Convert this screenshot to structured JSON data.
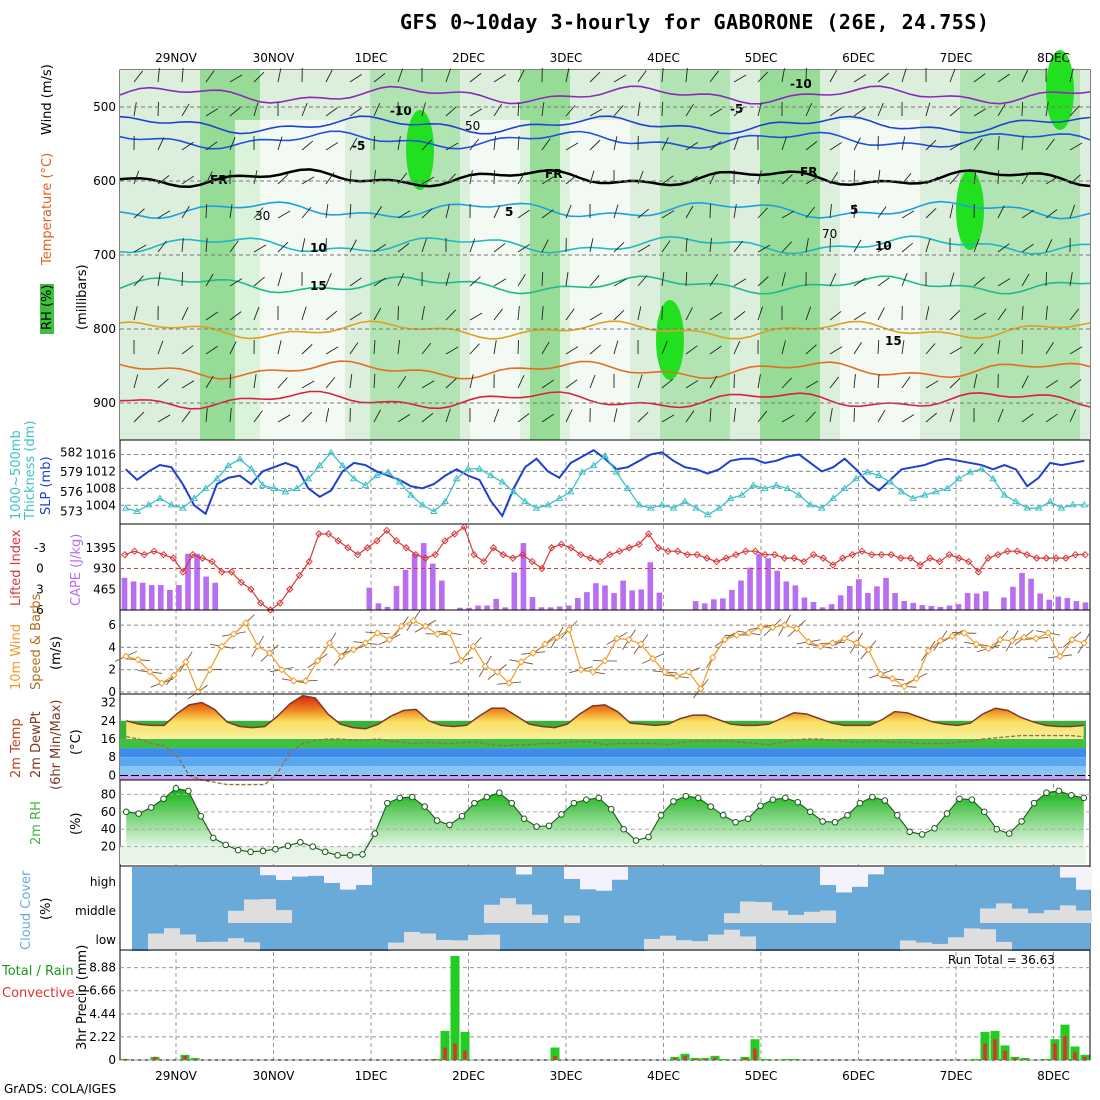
{
  "title": "GFS 0~10day 3-hourly for GABORONE (26E, 24.75S)",
  "credit": "GrADS: COLA/IGES",
  "dates": [
    "29NOV",
    "30NOV",
    "1DEC",
    "2DEC",
    "3DEC",
    "4DEC",
    "5DEC",
    "6DEC",
    "7DEC",
    "8DEC"
  ],
  "colors": {
    "rh_green": "#2dc52d",
    "rh_light": "#dcefdc",
    "slp": "#1f3fd0",
    "thick": "#3ec0c8",
    "li": "#d83838",
    "cape": "#b86ef0",
    "wind": "#f09a2a",
    "temp_max": "#e04020",
    "rh2m": "#3cb83c",
    "cloud": "#6aaad8",
    "precip_total": "#22cc22",
    "precip_conv": "#e03030"
  },
  "chart_data": [
    {
      "type": "heatmap",
      "title": "RH (%), Temperature (°C), Wind (m/s)",
      "ylabel": "(millibars)",
      "y_ticks": [
        "500",
        "600",
        "700",
        "800",
        "900"
      ],
      "labels": {
        "rh": "RH (%)",
        "temp": "Temperature (°C)",
        "wind": "Wind (m/s)",
        "mb": "(millibars)"
      },
      "isotherm_labels": [
        "-10",
        "-10",
        "-5",
        "-5",
        "FR",
        "FR",
        "FR",
        "5",
        "5",
        "10",
        "10",
        "15",
        "15"
      ],
      "rh_contour_labels": [
        "30",
        "50",
        "70"
      ]
    },
    {
      "type": "line",
      "title": "1000-500mb Thickness (dm) / SLP (mb)",
      "labels": {
        "thick": "1000~500mb",
        "thick2": "Thickness (dm)",
        "slp": "SLP (mb)"
      },
      "left_ticks": [
        "582",
        "579",
        "576",
        "573"
      ],
      "right_ticks": [
        "1016",
        "1012",
        "1008",
        "1004"
      ],
      "left_ylim": [
        572,
        583
      ],
      "right_ylim": [
        1001,
        1018
      ],
      "series": [
        {
          "name": "SLP",
          "values": [
            1012.5,
            1010,
            1012,
            1013.5,
            1013,
            1009,
            1004,
            1002,
            1009,
            1010.5,
            1011,
            1009,
            1012,
            1013,
            1014,
            1013,
            1008,
            1006,
            1007.5,
            1012,
            1014,
            1013.5,
            1012,
            1011,
            1010,
            1008.5,
            1008,
            1009,
            1011,
            1012.5,
            1011,
            1010,
            1005,
            1001.5,
            1008,
            1013,
            1015,
            1012,
            1010.5,
            1014,
            1015.5,
            1017,
            1015,
            1012.5,
            1013,
            1014.5,
            1016,
            1016.5,
            1014.5,
            1013,
            1012.5,
            1011.5,
            1012.5,
            1014.5,
            1015,
            1015,
            1014,
            1014.5,
            1015.5,
            1016,
            1014,
            1012,
            1013,
            1015,
            1012.5,
            1009.5,
            1007.5,
            1010,
            1012.5,
            1013,
            1013.5,
            1014.5,
            1015,
            1014.5,
            1014,
            1013.5,
            1012.5,
            1013.5,
            1012.5,
            1008.5,
            1010.5,
            1014,
            1013.5,
            1014,
            1014.5
          ]
        },
        {
          "name": "Thickness",
          "values": [
            573.5,
            573,
            574,
            575,
            574,
            573.5,
            575,
            576.5,
            578,
            580,
            581,
            579.5,
            577,
            576.5,
            576,
            576.5,
            578,
            580,
            582,
            580,
            578,
            577,
            578.5,
            579,
            577.5,
            575.5,
            574,
            573,
            574.5,
            578,
            579.5,
            579.5,
            578.5,
            577.5,
            576,
            574.5,
            573.5,
            574,
            575,
            576,
            579,
            580,
            581.5,
            579,
            576.5,
            574,
            573.5,
            574,
            573.5,
            574.5,
            573.5,
            572.5,
            573.5,
            575,
            575.5,
            577,
            576.5,
            577,
            576.5,
            575.5,
            574,
            573.5,
            575,
            576.5,
            578,
            579,
            578.5,
            577.5,
            576,
            575,
            575.5,
            576,
            576.5,
            578,
            579,
            579.5,
            578,
            575.5,
            574.5,
            573.5,
            573.5,
            574.5,
            573.5,
            574,
            574
          ]
        }
      ]
    },
    {
      "type": "bar",
      "title": "Lifted Index / CAPE (J/kg)",
      "labels": {
        "li": "Lifted Index",
        "cape": "CAPE (J/kg)"
      },
      "li_ticks": [
        "-3",
        "0",
        "3",
        "6"
      ],
      "cape_ticks": [
        "1395",
        "930",
        "465"
      ],
      "li_ylim": [
        -6,
        6
      ],
      "cape_ylim": [
        0,
        1860
      ],
      "series": [
        {
          "name": "CAPE",
          "values": [
            720,
            640,
            610,
            560,
            560,
            450,
            560,
            1260,
            1260,
            750,
            610,
            0,
            0,
            0,
            0,
            0,
            0,
            0,
            0,
            0,
            0,
            0,
            0,
            0,
            0,
            0,
            0,
            500,
            150,
            70,
            540,
            900,
            1260,
            1500,
            1040,
            660,
            0,
            50,
            50,
            100,
            100,
            250,
            60,
            840,
            1500,
            290,
            60,
            60,
            80,
            100,
            270,
            400,
            600,
            550,
            380,
            660,
            440,
            460,
            1070,
            390,
            0,
            0,
            0,
            200,
            150,
            240,
            260,
            450,
            660,
            950,
            1260,
            1160,
            880,
            640,
            550,
            280,
            180,
            60,
            130,
            330,
            540,
            690,
            380,
            530,
            720,
            380,
            200,
            160,
            110,
            90,
            70,
            100,
            130,
            380,
            370,
            420,
            0,
            280,
            520,
            830,
            700,
            370,
            230,
            300,
            270,
            200,
            170
          ]
        },
        {
          "name": "Lifted Index",
          "values": [
            -2,
            -2.5,
            -2,
            -2.5,
            -2,
            -1.5,
            0.5,
            -2,
            -1.5,
            -1,
            0.5,
            0.5,
            2,
            3,
            5,
            6,
            5,
            3,
            1,
            -1,
            -5,
            -5,
            -4,
            -3,
            -2,
            -3,
            -4,
            -5.5,
            -4,
            -3,
            -2,
            -1.5,
            -2,
            -4,
            -5,
            -6,
            -2,
            -1,
            -3,
            -2,
            -1.5,
            -2,
            -1,
            0,
            -3,
            -3.5,
            -3,
            -2,
            -1.5,
            -1,
            -2,
            -2.5,
            -3,
            -3.5,
            -5,
            -3,
            -2.5,
            -2.5,
            -2,
            -2,
            -1.5,
            -1,
            -1.5,
            -2,
            -2.5,
            -2.5,
            -2,
            -2,
            -1.5,
            -1.5,
            -1,
            -2,
            -1.5,
            -0.5,
            -1.5,
            -2,
            -2.5,
            -2,
            -2,
            -2,
            -1.5,
            -1.5,
            -0.5,
            -1.5,
            -1,
            -2,
            -1.5,
            -1,
            0.5,
            -1.5,
            -2,
            -2.5,
            -2.5,
            -2,
            -1.5,
            -1.5,
            -1.5,
            -1.5,
            -2,
            -2
          ]
        }
      ]
    },
    {
      "type": "line",
      "title": "10m Wind Speed & Barbs (m/s)",
      "labels": {
        "a": "10m Wind",
        "b": "Speed & Barbs",
        "c": "(m/s)"
      },
      "y_ticks": [
        "6",
        "4",
        "2",
        "0"
      ],
      "ylim": [
        0,
        7
      ],
      "series": [
        {
          "name": "Wind speed",
          "values": [
            3.2,
            2.9,
            1.8,
            0.8,
            1.5,
            2.7,
            0,
            2,
            4.1,
            5.2,
            6.2,
            4.1,
            3.5,
            2,
            1,
            1,
            2.8,
            4.4,
            3.2,
            3.8,
            4.4,
            5.3,
            4.7,
            5.9,
            6.4,
            5.9,
            5.2,
            5.3,
            2.8,
            4.1,
            2.3,
            1.8,
            0.8,
            2.7,
            3.5,
            4.3,
            4.9,
            5.6,
            2,
            1.8,
            2.8,
            4.8,
            4.7,
            4.3,
            3,
            1.8,
            1.4,
            1.8,
            0.3,
            3.1,
            4.7,
            5.1,
            5.3,
            5.8,
            5.8,
            6,
            5.7,
            4.5,
            4.1,
            4.4,
            4.8,
            4.4,
            3.8,
            1.6,
            1.2,
            0.5,
            1.2,
            3.7,
            4.6,
            5,
            5.3,
            4.3,
            3.9,
            4.7,
            4.6,
            4.9,
            4.8,
            5.3,
            3.2,
            4.7,
            4.4
          ]
        }
      ]
    },
    {
      "type": "area",
      "title": "2m Temp / 2m DewPt (6hr Min/Max) (°C)",
      "labels": {
        "a": "2m Temp",
        "b": "2m DewPt",
        "c": "(6hr Min/Max)",
        "d": "(°C)"
      },
      "y_ticks": [
        "32",
        "24",
        "16",
        "8",
        "0"
      ],
      "ylim": [
        -2,
        34
      ],
      "series": [
        {
          "name": "2m Temp",
          "values": [
            24,
            22.5,
            22,
            22,
            27,
            31,
            32,
            29,
            23.5,
            21.5,
            21,
            21.5,
            26,
            31.5,
            35,
            34,
            27,
            22.5,
            21,
            20.5,
            22.5,
            26,
            28.5,
            29,
            24,
            22,
            21.5,
            22,
            26,
            29.5,
            29.5,
            26,
            22.5,
            21.5,
            21,
            22.5,
            27,
            30.5,
            31,
            28,
            23,
            22.5,
            22,
            22.5,
            25,
            26.5,
            26.5,
            24.5,
            22.5,
            22,
            22,
            22.5,
            25,
            27.5,
            27,
            25,
            23,
            22,
            22,
            22,
            24.5,
            28,
            27.5,
            25.5,
            23.5,
            22.5,
            22,
            23,
            27,
            29.5,
            28.5,
            25.5,
            23.5,
            22,
            21.5,
            21.5,
            22
          ]
        },
        {
          "name": "2m DewPt",
          "values": [
            17,
            16,
            14,
            13,
            9,
            0,
            -2,
            -3,
            -4,
            -4,
            -4,
            -4,
            1,
            10,
            14,
            15.5,
            16,
            16,
            15.5,
            15.5,
            16,
            15,
            14.5,
            14,
            14.5,
            14,
            14,
            14.5,
            14.5,
            13.5,
            13,
            13.5,
            13.5,
            14,
            14,
            14.5,
            15,
            14.5,
            13.5,
            14,
            14,
            14,
            14,
            13.5,
            14.5,
            15,
            15,
            15,
            15,
            14.5,
            14,
            13.5,
            14.5,
            15.5,
            16,
            16,
            15.5,
            15,
            14.5,
            15,
            15,
            14.5,
            14.5,
            14,
            14,
            14,
            14.5,
            15,
            16,
            16.5,
            17,
            17.5,
            17.5,
            17.5,
            17.5,
            17.5,
            17
          ]
        }
      ]
    },
    {
      "type": "area",
      "title": "2m RH (%)",
      "labels": {
        "a": "2m RH",
        "b": "(%)"
      },
      "y_ticks": [
        "80",
        "60",
        "40",
        "20"
      ],
      "ylim": [
        0,
        92
      ],
      "series": [
        {
          "name": "2m RH",
          "values": [
            60,
            58,
            65,
            75,
            87,
            84,
            55,
            30,
            22,
            16,
            14,
            15,
            17,
            21,
            25,
            20,
            14,
            10,
            10,
            11,
            35,
            70,
            76,
            77,
            66,
            50,
            45,
            55,
            70,
            77,
            82,
            70,
            52,
            43,
            44,
            57,
            70,
            74,
            76,
            63,
            40,
            27,
            31,
            56,
            72,
            78,
            76,
            66,
            56,
            48,
            52,
            67,
            74,
            76,
            71,
            60,
            49,
            48,
            56,
            70,
            77,
            73,
            56,
            37,
            34,
            41,
            58,
            75,
            74,
            60,
            40,
            35,
            49,
            70,
            82,
            84,
            79,
            76
          ]
        }
      ]
    },
    {
      "type": "area",
      "title": "Cloud Cover (%)",
      "labels": {
        "a": "Cloud Cover",
        "b": "(%)"
      },
      "row_labels": [
        "high",
        "middle",
        "low"
      ]
    },
    {
      "type": "bar",
      "title": "3hr Precip (mm)",
      "labels": {
        "a": "Total / Rain",
        "b": "Convective",
        "c": "3hr Precip (mm)"
      },
      "y_ticks": [
        "8.88",
        "6.66",
        "4.44",
        "2.22",
        "0"
      ],
      "ylim": [
        0,
        10
      ],
      "run_total": "Run Total = 36.63",
      "series": [
        {
          "name": "Total",
          "values": [
            0.1,
            0,
            0,
            0.3,
            0,
            0,
            0.5,
            0.2,
            0,
            0,
            0,
            0,
            0,
            0,
            0,
            0,
            0,
            0,
            0,
            0,
            0,
            0,
            0,
            0,
            0,
            0,
            0,
            0,
            0,
            0,
            0,
            0.1,
            2.8,
            10,
            2.7,
            0,
            0,
            0,
            0,
            0,
            0,
            0,
            0,
            1.2,
            0,
            0,
            0,
            0,
            0,
            0,
            0,
            0,
            0,
            0,
            0,
            0.3,
            0.6,
            0.2,
            0.2,
            0.4,
            0.1,
            0,
            0.3,
            2,
            0.1,
            0,
            0.1,
            0.1,
            0,
            0,
            0,
            0,
            0,
            0,
            0,
            0,
            0,
            0,
            0,
            0,
            0,
            0,
            0,
            0,
            0,
            0.1,
            2.7,
            2.8,
            1.4,
            0.3,
            0.2,
            0,
            0.1,
            2,
            3.4,
            1.3,
            0.5
          ]
        },
        {
          "name": "Convective",
          "values": [
            0.1,
            0,
            0,
            0.3,
            0,
            0,
            0.4,
            0.1,
            0,
            0,
            0,
            0,
            0,
            0,
            0,
            0,
            0,
            0,
            0,
            0,
            0,
            0,
            0,
            0,
            0,
            0,
            0,
            0,
            0,
            0,
            0,
            0.1,
            1.2,
            1.6,
            0.9,
            0,
            0,
            0,
            0,
            0,
            0,
            0,
            0,
            0.4,
            0,
            0,
            0,
            0,
            0,
            0,
            0,
            0,
            0,
            0,
            0,
            0.2,
            0.4,
            0.1,
            0.1,
            0.2,
            0,
            0,
            0.2,
            1.1,
            0,
            0,
            0,
            0,
            0,
            0,
            0,
            0,
            0,
            0,
            0,
            0,
            0,
            0,
            0,
            0,
            0,
            0,
            0,
            0,
            0,
            0,
            1.6,
            2,
            0.9,
            0.2,
            0.1,
            0,
            0,
            1.6,
            2.3,
            0.8,
            0.3
          ]
        }
      ]
    }
  ]
}
